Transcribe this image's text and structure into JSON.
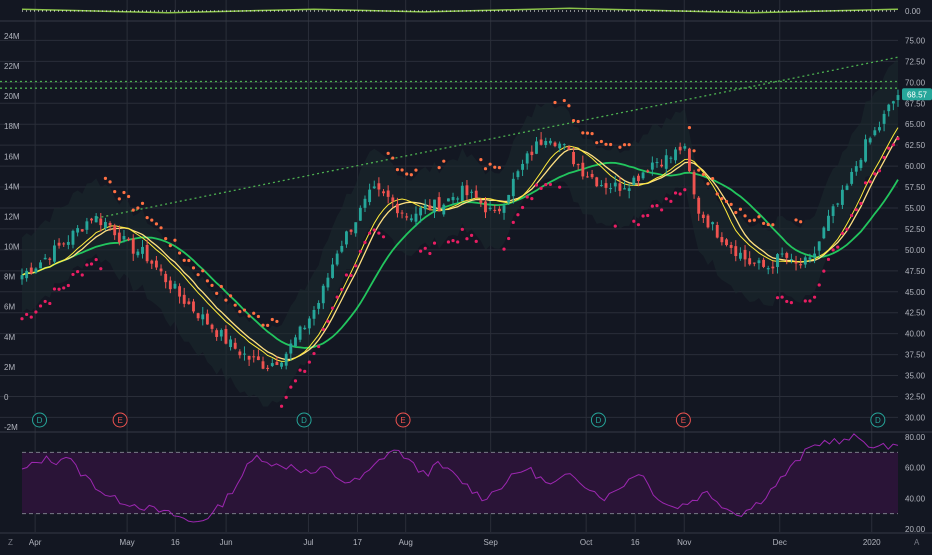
{
  "colors": {
    "background": "#131722",
    "grid": "#2a2e39",
    "up": "#26a69a",
    "down": "#ef5350",
    "sma_fast": "#ffeb3b",
    "sma_slow": "#ffe082",
    "sma_long": "#22c55e",
    "trend": "#4caf50",
    "psar_up": "#e91e63",
    "psar_down": "#ff7043",
    "rsi": "#9c27b0",
    "rsi_band": "#2a1437",
    "price_badge": "#26a69a",
    "dividend": "#26a69a",
    "earnings": "#ef5350",
    "text": "#b2b5be"
  },
  "chart_data": [
    {
      "type": "line",
      "panel": "top-oscillator",
      "y_tick_labels": [
        "0.00"
      ],
      "ylim": [
        -1,
        1
      ],
      "series": [
        {
          "values_desc": "oscillator",
          "values": [
            0.2,
            0.1,
            0.0,
            -0.1,
            -0.2,
            -0.1,
            0.0,
            0.1,
            0.2,
            0.1,
            0.0,
            -0.1,
            0.0,
            0.1,
            0.2,
            0.3,
            0.2,
            0.1,
            0.0,
            -0.1,
            -0.2,
            -0.1,
            0.0,
            0.1,
            0.2
          ]
        }
      ]
    },
    {
      "type": "candlestick",
      "panel": "price",
      "x_tick_labels": [
        "Apr",
        "May",
        "16",
        "Jun",
        "Jul",
        "17",
        "Aug",
        "Sep",
        "Oct",
        "16",
        "Nov",
        "Dec",
        "2020"
      ],
      "right_axis_labels": [
        "75.00",
        "72.50",
        "70.00",
        "67.50",
        "65.00",
        "62.50",
        "60.00",
        "57.50",
        "55.00",
        "52.50",
        "50.00",
        "47.50",
        "45.00",
        "42.50",
        "40.00",
        "37.50",
        "35.00",
        "32.50",
        "30.00"
      ],
      "left_axis_labels": [
        "24M",
        "22M",
        "20M",
        "18M",
        "16M",
        "14M",
        "12M",
        "10M",
        "8M",
        "6M",
        "4M",
        "2M",
        "0",
        "-2M"
      ],
      "ylim": [
        28.5,
        77.2
      ],
      "last_price": "68.57",
      "events": [
        {
          "label": "D",
          "kind": "dividend",
          "t": 0.02
        },
        {
          "label": "E",
          "kind": "earnings",
          "t": 0.112
        },
        {
          "label": "D",
          "kind": "dividend",
          "t": 0.322
        },
        {
          "label": "E",
          "kind": "earnings",
          "t": 0.435
        },
        {
          "label": "D",
          "kind": "dividend",
          "t": 0.658
        },
        {
          "label": "E",
          "kind": "earnings",
          "t": 0.755
        },
        {
          "label": "D",
          "kind": "dividend",
          "t": 0.977
        }
      ],
      "close_path": [
        [
          0.0,
          47.0
        ],
        [
          0.02,
          48.5
        ],
        [
          0.05,
          51.0
        ],
        [
          0.08,
          54.0
        ],
        [
          0.1,
          53.0
        ],
        [
          0.12,
          50.5
        ],
        [
          0.14,
          49.5
        ],
        [
          0.16,
          47.0
        ],
        [
          0.18,
          44.5
        ],
        [
          0.2,
          42.5
        ],
        [
          0.22,
          40.5
        ],
        [
          0.24,
          38.5
        ],
        [
          0.26,
          37.0
        ],
        [
          0.28,
          36.2
        ],
        [
          0.3,
          37.5
        ],
        [
          0.32,
          40.5
        ],
        [
          0.34,
          44.0
        ],
        [
          0.36,
          50.0
        ],
        [
          0.38,
          53.5
        ],
        [
          0.4,
          57.0
        ],
        [
          0.42,
          56.0
        ],
        [
          0.44,
          54.0
        ],
        [
          0.46,
          55.0
        ],
        [
          0.48,
          55.5
        ],
        [
          0.5,
          57.0
        ],
        [
          0.52,
          56.0
        ],
        [
          0.54,
          54.0
        ],
        [
          0.56,
          58.0
        ],
        [
          0.58,
          61.5
        ],
        [
          0.6,
          64.0
        ],
        [
          0.62,
          62.0
        ],
        [
          0.64,
          59.5
        ],
        [
          0.66,
          58.0
        ],
        [
          0.68,
          57.5
        ],
        [
          0.7,
          58.5
        ],
        [
          0.72,
          60.5
        ],
        [
          0.74,
          61.0
        ],
        [
          0.755,
          62.5
        ],
        [
          0.77,
          55.0
        ],
        [
          0.79,
          52.5
        ],
        [
          0.81,
          50.5
        ],
        [
          0.83,
          48.5
        ],
        [
          0.85,
          47.8
        ],
        [
          0.87,
          49.5
        ],
        [
          0.88,
          48.0
        ],
        [
          0.9,
          48.5
        ],
        [
          0.92,
          53.5
        ],
        [
          0.94,
          57.0
        ],
        [
          0.96,
          62.0
        ],
        [
          0.97,
          63.5
        ],
        [
          0.98,
          65.0
        ],
        [
          0.99,
          67.0
        ],
        [
          1.0,
          68.57
        ]
      ]
    },
    {
      "type": "line",
      "panel": "rsi",
      "y_tick_labels": [
        "80.00",
        "60.00",
        "40.00",
        "20.00"
      ],
      "ylim": [
        18,
        82
      ],
      "band": [
        30,
        70
      ],
      "values": [
        58,
        62,
        66,
        64,
        68,
        58,
        52,
        45,
        40,
        38,
        36,
        34,
        32,
        30,
        28,
        24,
        26,
        30,
        38,
        48,
        60,
        68,
        64,
        60,
        62,
        58,
        56,
        60,
        54,
        50,
        52,
        58,
        66,
        72,
        68,
        60,
        56,
        62,
        58,
        52,
        46,
        40,
        44,
        50,
        56,
        60,
        54,
        48,
        52,
        56,
        50,
        44,
        40,
        46,
        52,
        58,
        46,
        38,
        34,
        36,
        40,
        44,
        38,
        32,
        30,
        34,
        40,
        48,
        56,
        64,
        72,
        76,
        78,
        76,
        80,
        78,
        72,
        74,
        76
      ]
    }
  ],
  "tv_logo_left": "Z",
  "tv_logo_right": "A"
}
